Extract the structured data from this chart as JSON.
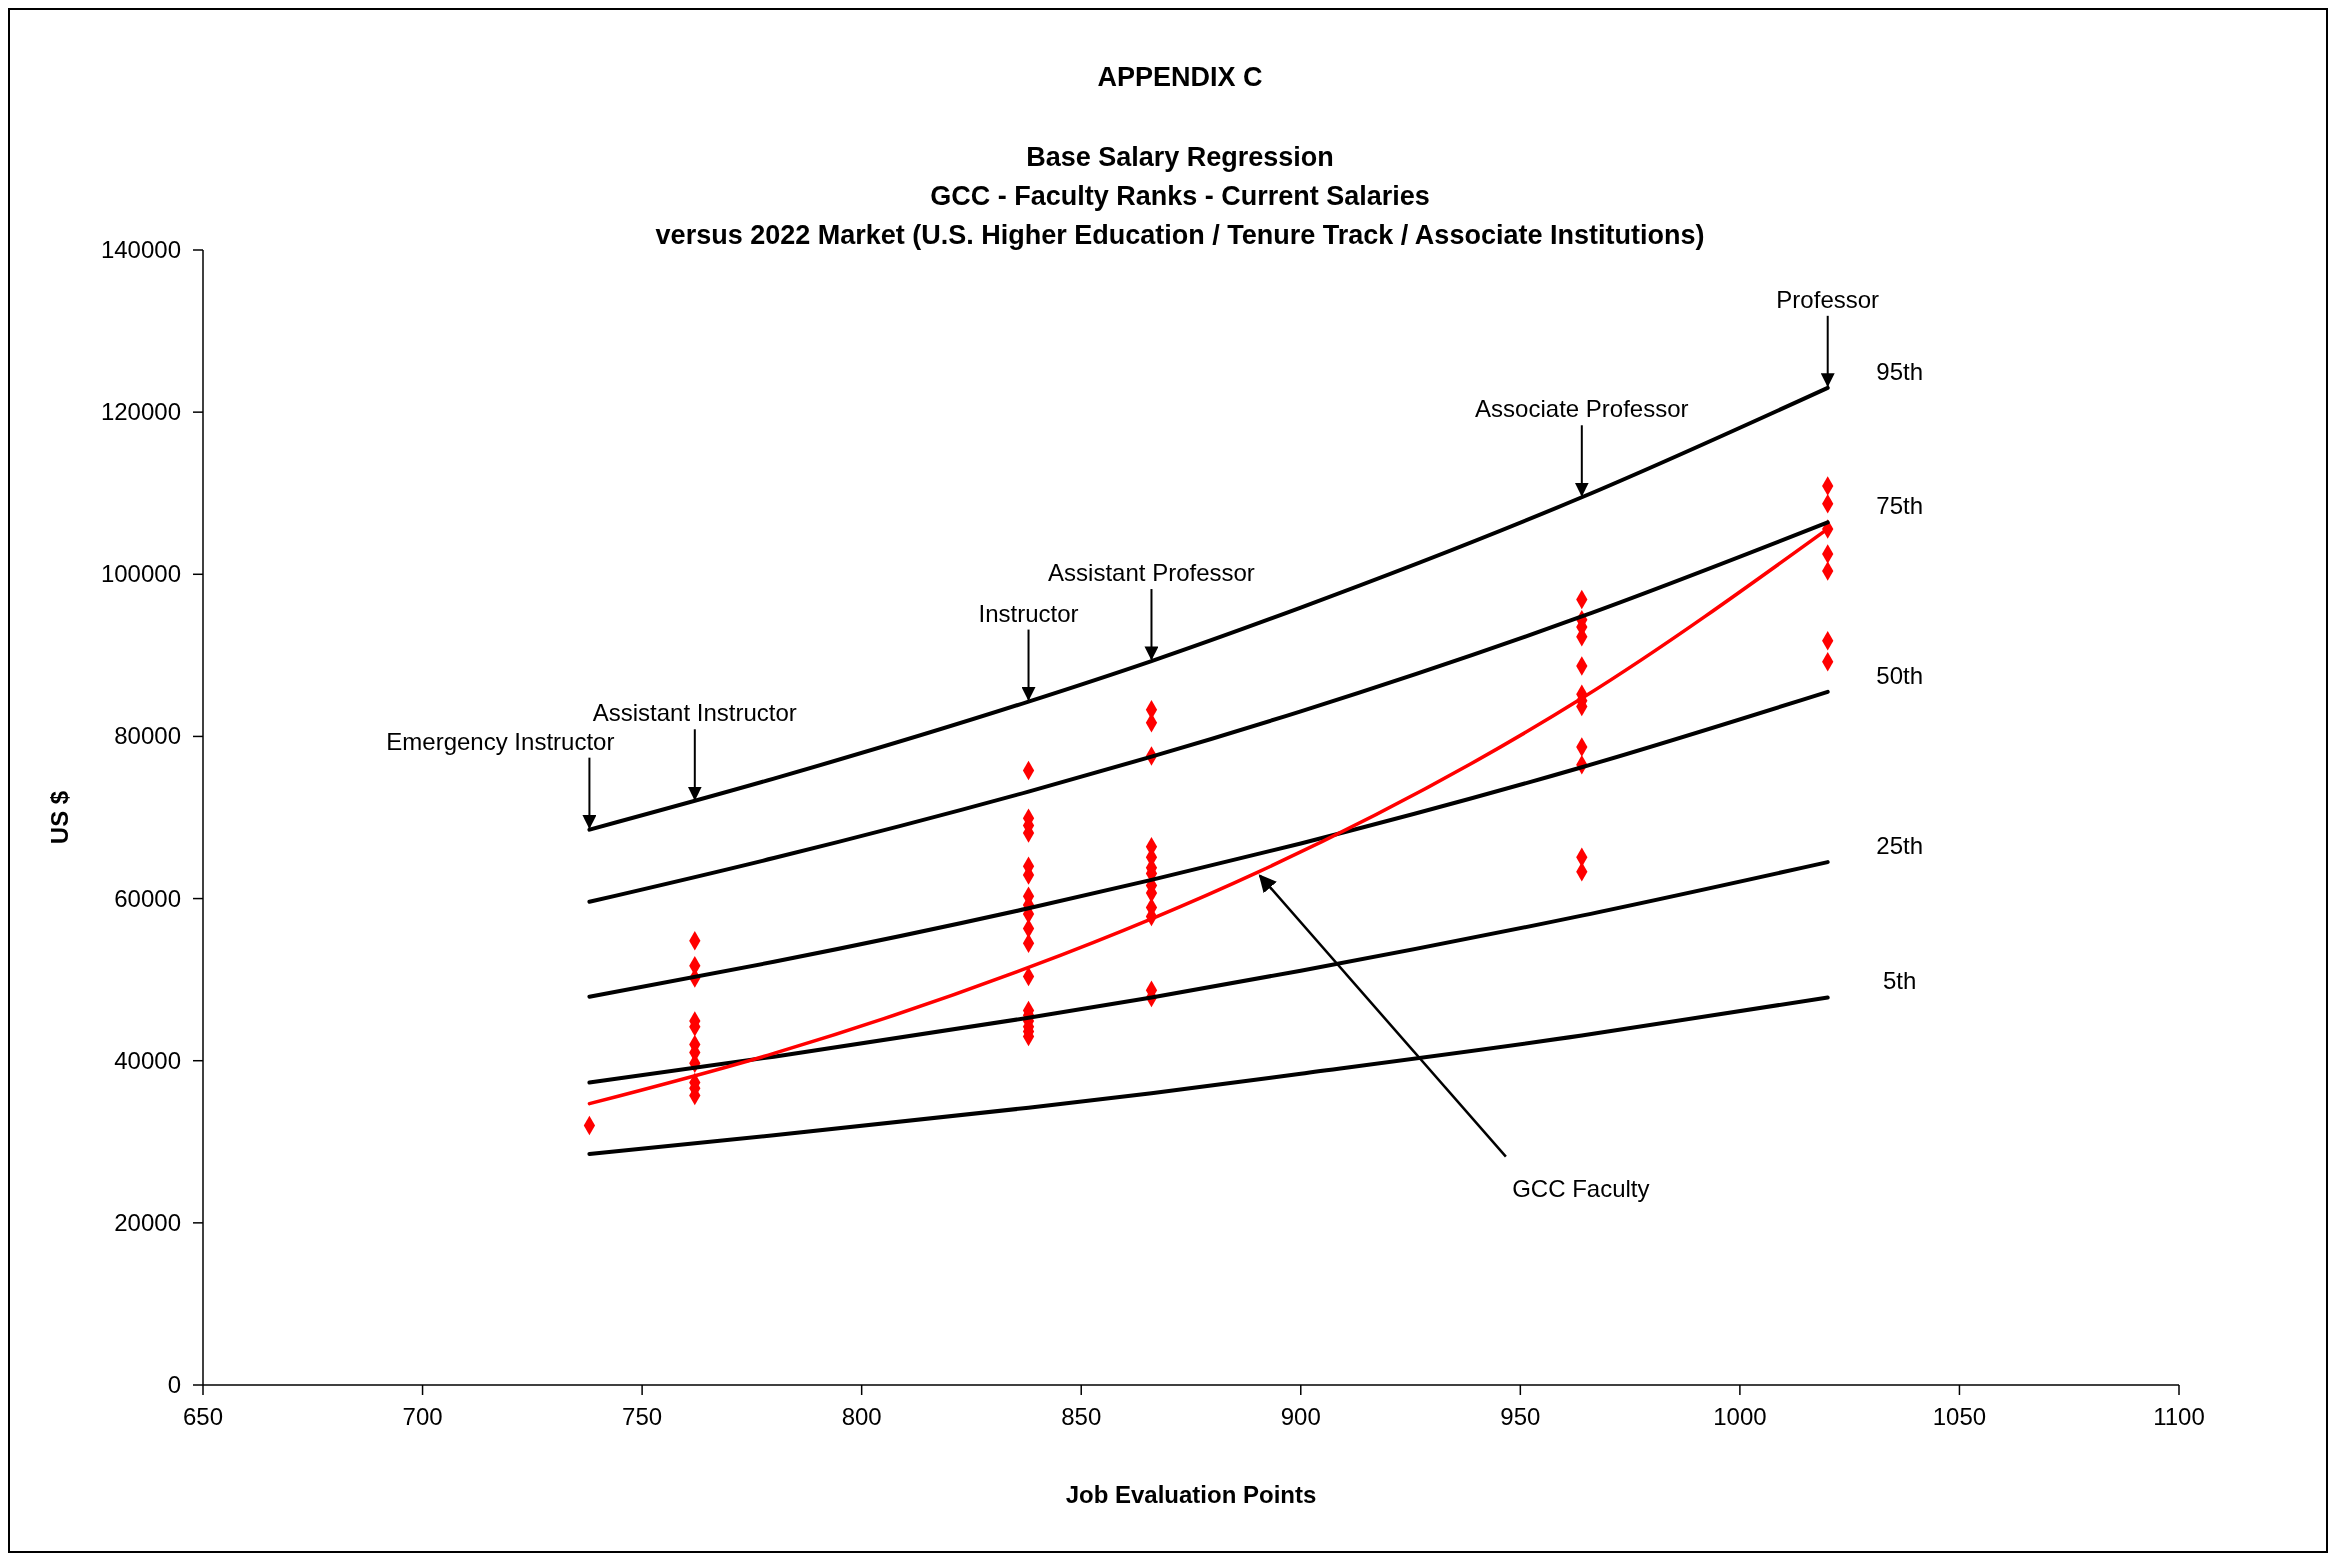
{
  "chart_data": {
    "type": "scatter",
    "title": "APPENDIX C",
    "subtitle": "Base Salary Regression\nGCC - Faculty Ranks - Current Salaries\nversus 2022 Market (U.S. Higher Education / Tenure Track / Associate Institutions)",
    "xlabel": "Job Evaluation Points",
    "ylabel": "US $",
    "xlim": [
      650,
      1100
    ],
    "xticks": [
      650,
      700,
      750,
      800,
      850,
      900,
      950,
      1000,
      1050,
      1100
    ],
    "ylim": [
      0,
      140000
    ],
    "yticks": [
      0,
      20000,
      40000,
      60000,
      80000,
      100000,
      120000,
      140000
    ],
    "grid": false,
    "series": [
      {
        "type": "line",
        "name": "95th",
        "color": "#000000",
        "marker": "none",
        "x": [
          738,
          780,
          838,
          866,
          900,
          964,
          1020
        ],
        "values": [
          68500,
          74800,
          84300,
          89300,
          95900,
          109500,
          123000
        ]
      },
      {
        "type": "line",
        "name": "75th",
        "color": "#000000",
        "marker": "none",
        "x": [
          738,
          780,
          838,
          866,
          900,
          964,
          1020
        ],
        "values": [
          59600,
          65000,
          73200,
          77500,
          83100,
          94800,
          106400
        ]
      },
      {
        "type": "line",
        "name": "50th",
        "color": "#000000",
        "marker": "none",
        "x": [
          738,
          780,
          838,
          866,
          900,
          964,
          1020
        ],
        "values": [
          47900,
          52200,
          58800,
          62300,
          66800,
          76200,
          85500
        ]
      },
      {
        "type": "line",
        "name": "25th",
        "color": "#000000",
        "marker": "none",
        "x": [
          738,
          780,
          838,
          866,
          900,
          964,
          1020
        ],
        "values": [
          37300,
          40500,
          45300,
          47800,
          51100,
          57900,
          64500
        ]
      },
      {
        "type": "line",
        "name": "5th",
        "color": "#000000",
        "marker": "none",
        "x": [
          738,
          780,
          838,
          866,
          900,
          964,
          1020
        ],
        "values": [
          28500,
          30800,
          34200,
          36000,
          38400,
          43100,
          47800
        ]
      },
      {
        "type": "line",
        "name": "GCC Faculty",
        "color": "#ff0000",
        "marker": "none",
        "x": [
          738,
          780,
          838,
          866,
          890,
          964,
          1020
        ],
        "values": [
          34700,
          40900,
          51500,
          57500,
          63200,
          84700,
          105600
        ]
      },
      {
        "color": "#ff0000",
        "marker": "diamond",
        "x": [
          738,
          762,
          762,
          762,
          762,
          762,
          762,
          762,
          762,
          762,
          762,
          762,
          838,
          838,
          838,
          838,
          838,
          838,
          838,
          838,
          838,
          838,
          838,
          838,
          838,
          838,
          838,
          838,
          838,
          838,
          866,
          866,
          866,
          866,
          866,
          866,
          866,
          866,
          866,
          866,
          866,
          866,
          866,
          964,
          964,
          964,
          964,
          964,
          964,
          964,
          964,
          964,
          964,
          964,
          964,
          1020,
          1020,
          1020,
          1020,
          1020,
          1020,
          1020
        ],
        "values": [
          32000,
          54800,
          51700,
          50200,
          44900,
          44200,
          42000,
          41000,
          39700,
          37300,
          36600,
          35700,
          75800,
          69900,
          69000,
          68100,
          64000,
          62900,
          60300,
          59200,
          58100,
          56300,
          54500,
          50400,
          46200,
          45600,
          44900,
          44200,
          43600,
          43000,
          83300,
          81700,
          77600,
          66400,
          65100,
          63800,
          63100,
          61600,
          60700,
          58900,
          57800,
          48700,
          47800,
          96900,
          94400,
          93500,
          92300,
          88700,
          85200,
          84400,
          83700,
          78700,
          76500,
          65100,
          63300,
          110900,
          108700,
          105600,
          102500,
          100400,
          91800,
          89200
        ]
      }
    ],
    "annotations": [
      {
        "text": "Emergency Instructor",
        "x": 738,
        "y": 68500
      },
      {
        "text": "Assistant Instructor",
        "x": 762,
        "y": 72000
      },
      {
        "text": "Instructor",
        "x": 838,
        "y": 84300
      },
      {
        "text": "Assistant Professor",
        "x": 866,
        "y": 89300
      },
      {
        "text": "Associate Professor",
        "x": 964,
        "y": 109500
      },
      {
        "text": "Professor",
        "x": 1020,
        "y": 123000
      }
    ]
  }
}
